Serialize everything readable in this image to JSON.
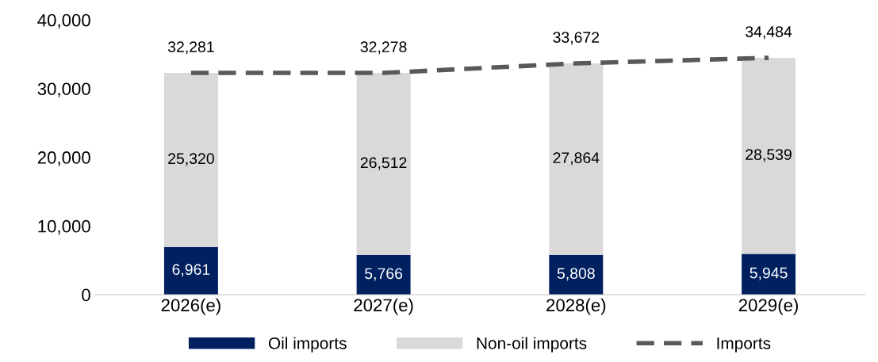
{
  "chart_data": {
    "type": "bar",
    "stacked": true,
    "categories": [
      "2026(e)",
      "2027(e)",
      "2028(e)",
      "2029(e)"
    ],
    "series": [
      {
        "name": "Oil imports",
        "color": "#002060",
        "values": [
          6961,
          5766,
          5808,
          5945
        ],
        "value_labels": [
          "6,961",
          "5,766",
          "5,808",
          "5,945"
        ]
      },
      {
        "name": "Non-oil imports",
        "color": "#d9d9d9",
        "values": [
          25320,
          26512,
          27864,
          28539
        ],
        "value_labels": [
          "25,320",
          "26,512",
          "27,864",
          "28,539"
        ]
      },
      {
        "name": "Imports",
        "type": "line",
        "color": "#595959",
        "line_style": "dashed",
        "values": [
          32281,
          32278,
          33672,
          34484
        ],
        "value_labels": [
          "32,281",
          "32,278",
          "33,672",
          "34,484"
        ]
      }
    ],
    "ylim": [
      0,
      40000
    ],
    "yticks": [
      0,
      {
        "value": 10000,
        "label": "10,000"
      },
      {
        "value": 20000,
        "label": "20,000"
      },
      {
        "value": 30000,
        "label": "30,000"
      },
      {
        "value": 40000,
        "label": "40,000"
      }
    ],
    "grid": false,
    "legend": "bottom"
  }
}
